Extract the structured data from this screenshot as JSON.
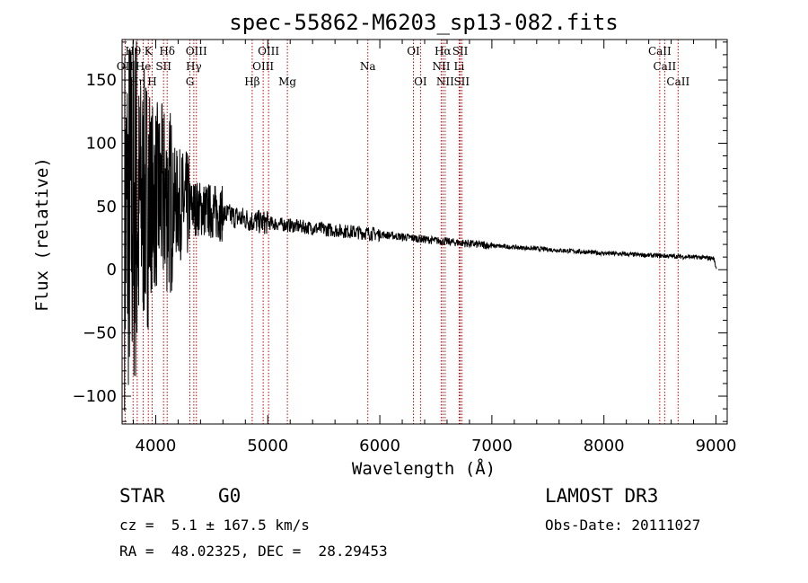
{
  "chart_data": {
    "type": "line",
    "title": "spec-55862-M6203_sp13-082.fits",
    "xlabel": "Wavelength (Å)",
    "ylabel": "Flux (relative)",
    "xlim": [
      3700,
      9100
    ],
    "ylim": [
      -122,
      182
    ],
    "xticks": [
      {
        "value": 4000,
        "label": "4000"
      },
      {
        "value": 5000,
        "label": "5000"
      },
      {
        "value": 6000,
        "label": "6000"
      },
      {
        "value": 7000,
        "label": "7000"
      },
      {
        "value": 8000,
        "label": "8000"
      },
      {
        "value": 9000,
        "label": "9000"
      }
    ],
    "yticks": [
      {
        "value": 150,
        "label": "150"
      },
      {
        "value": 100,
        "label": "100"
      },
      {
        "value": 50,
        "label": "50"
      },
      {
        "value": 0,
        "label": "0"
      },
      {
        "value": -50,
        "label": "−50"
      },
      {
        "value": -100,
        "label": "−100"
      }
    ],
    "continuum": {
      "x": [
        3720,
        3800,
        3900,
        4000,
        4100,
        4200,
        4300,
        4400,
        4500,
        4700,
        4900,
        5200,
        5500,
        6000,
        6500,
        7000,
        7500,
        8000,
        8500,
        8800,
        8980,
        9000
      ],
      "y": [
        40,
        50,
        56,
        58,
        55,
        52,
        50,
        48,
        46,
        42,
        38,
        35,
        32,
        28,
        23,
        19,
        16,
        13,
        11,
        10,
        9,
        2
      ]
    },
    "spectral_lines": [
      {
        "name": "Hθ",
        "wavelength": 3798,
        "row": 0
      },
      {
        "name": "K",
        "wavelength": 3934,
        "row": 0
      },
      {
        "name": "Hδ",
        "wavelength": 4102,
        "row": 0
      },
      {
        "name": "OIII",
        "wavelength": 4363,
        "row": 0
      },
      {
        "name": "OIII",
        "wavelength": 5007,
        "row": 0
      },
      {
        "name": "OI",
        "wavelength": 6300,
        "row": 0
      },
      {
        "name": "Hα",
        "wavelength": 6563,
        "row": 0
      },
      {
        "name": "SII",
        "wavelength": 6717,
        "row": 0
      },
      {
        "name": "CaII",
        "wavelength": 8498,
        "row": 0
      },
      {
        "name": "OII",
        "wavelength": 3727,
        "row": 1
      },
      {
        "name": "He",
        "wavelength": 3889,
        "row": 1
      },
      {
        "name": "SII",
        "wavelength": 4070,
        "row": 1
      },
      {
        "name": "Hγ",
        "wavelength": 4340,
        "row": 1
      },
      {
        "name": "OIII",
        "wavelength": 4959,
        "row": 1
      },
      {
        "name": "Na",
        "wavelength": 5893,
        "row": 1
      },
      {
        "name": "NII",
        "wavelength": 6548,
        "row": 1
      },
      {
        "name": "Li",
        "wavelength": 6708,
        "row": 1
      },
      {
        "name": "CaII",
        "wavelength": 8542,
        "row": 1
      },
      {
        "name": "Hη",
        "wavelength": 3835,
        "row": 2
      },
      {
        "name": "H",
        "wavelength": 3968,
        "row": 2
      },
      {
        "name": "G",
        "wavelength": 4305,
        "row": 2
      },
      {
        "name": "Hβ",
        "wavelength": 4861,
        "row": 2
      },
      {
        "name": "Mg",
        "wavelength": 5175,
        "row": 2
      },
      {
        "name": "OI",
        "wavelength": 6363,
        "row": 2
      },
      {
        "name": "NII",
        "wavelength": 6583,
        "row": 2
      },
      {
        "name": "SII",
        "wavelength": 6731,
        "row": 2
      },
      {
        "name": "CaII",
        "wavelength": 8662,
        "row": 2
      }
    ]
  },
  "info": {
    "class_label": "STAR",
    "subclass": "G0",
    "survey": "LAMOST DR3",
    "redshift_text": "cz =  5.1 ± 167.5 km/s",
    "obs_date_text": "Obs-Date: 20111027",
    "coords_text": "RA =  48.02325, DEC =  28.29453"
  },
  "colors": {
    "spectrum": "#000000",
    "line_markers": "#cc0000",
    "frame": "#000000"
  }
}
